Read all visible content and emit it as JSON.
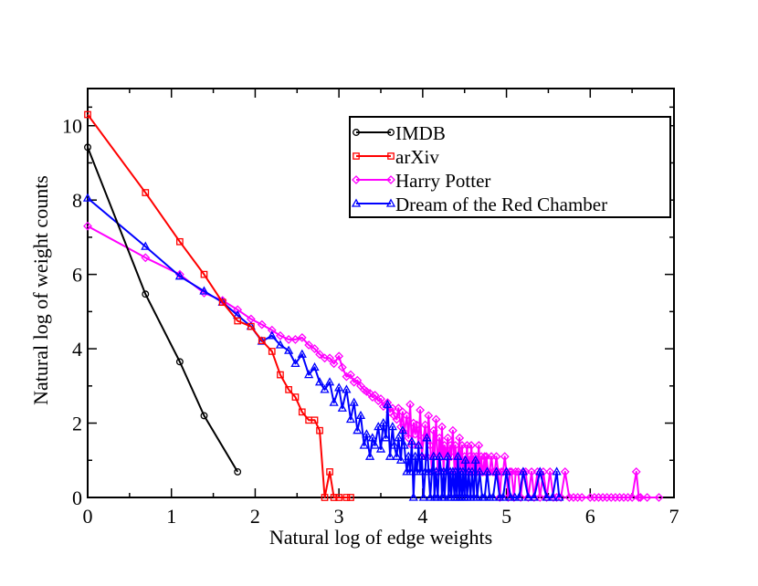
{
  "chart_data": {
    "type": "line",
    "title": "",
    "xlabel": "Natural log of edge weights",
    "ylabel": "Natural log of weight counts",
    "xlim": [
      0,
      7
    ],
    "ylim": [
      0,
      11
    ],
    "x_ticks": [
      0,
      1,
      2,
      3,
      4,
      5,
      6,
      7
    ],
    "y_ticks": [
      0,
      2,
      4,
      6,
      8,
      10
    ],
    "x_tick_labels": [
      "0",
      "1",
      "2",
      "3",
      "4",
      "5",
      "6",
      "7"
    ],
    "y_tick_labels": [
      "0",
      "2",
      "4",
      "6",
      "8",
      "10"
    ],
    "legend_position": "top-right",
    "series": [
      {
        "name": "IMDB",
        "color": "#000000",
        "marker": "circle",
        "points": [
          [
            0,
            9.42
          ],
          [
            0.69,
            5.47
          ],
          [
            1.1,
            3.65
          ],
          [
            1.39,
            2.2
          ],
          [
            1.79,
            0.69
          ]
        ]
      },
      {
        "name": "arXiv",
        "color": "#ff0000",
        "marker": "square",
        "points": [
          [
            0,
            10.3
          ],
          [
            0.69,
            8.2
          ],
          [
            1.1,
            6.88
          ],
          [
            1.39,
            6.0
          ],
          [
            1.61,
            5.25
          ],
          [
            1.79,
            4.75
          ],
          [
            1.95,
            4.6
          ],
          [
            2.08,
            4.22
          ],
          [
            2.2,
            3.93
          ],
          [
            2.3,
            3.3
          ],
          [
            2.4,
            2.9
          ],
          [
            2.48,
            2.7
          ],
          [
            2.56,
            2.3
          ],
          [
            2.64,
            2.08
          ],
          [
            2.71,
            2.08
          ],
          [
            2.77,
            1.8
          ],
          [
            2.83,
            0
          ],
          [
            2.89,
            0.69
          ],
          [
            2.94,
            0
          ],
          [
            3.0,
            0
          ],
          [
            3.09,
            0
          ],
          [
            3.14,
            0
          ]
        ]
      },
      {
        "name": "Harry Potter",
        "color": "#ff00ff",
        "marker": "diamond",
        "points": [
          [
            0,
            7.3
          ],
          [
            0.69,
            6.45
          ],
          [
            1.1,
            6.0
          ],
          [
            1.39,
            5.5
          ],
          [
            1.61,
            5.3
          ],
          [
            1.79,
            5.05
          ],
          [
            1.95,
            4.8
          ],
          [
            2.08,
            4.65
          ],
          [
            2.2,
            4.5
          ],
          [
            2.3,
            4.35
          ],
          [
            2.4,
            4.25
          ],
          [
            2.48,
            4.25
          ],
          [
            2.56,
            4.3
          ],
          [
            2.64,
            4.1
          ],
          [
            2.71,
            4.0
          ],
          [
            2.77,
            3.85
          ],
          [
            2.83,
            3.75
          ],
          [
            2.89,
            3.75
          ],
          [
            2.94,
            3.6
          ],
          [
            3.0,
            3.8
          ],
          [
            3.04,
            3.5
          ],
          [
            3.09,
            3.25
          ],
          [
            3.14,
            3.3
          ],
          [
            3.18,
            3.1
          ],
          [
            3.22,
            3.15
          ],
          [
            3.26,
            3.0
          ],
          [
            3.3,
            2.9
          ],
          [
            3.33,
            2.85
          ],
          [
            3.37,
            2.8
          ],
          [
            3.4,
            2.7
          ],
          [
            3.43,
            2.75
          ],
          [
            3.47,
            2.6
          ],
          [
            3.5,
            2.65
          ],
          [
            3.53,
            2.45
          ],
          [
            3.56,
            2.5
          ],
          [
            3.58,
            2.55
          ],
          [
            3.61,
            2.3
          ],
          [
            3.64,
            2.4
          ],
          [
            3.66,
            2.2
          ],
          [
            3.69,
            2.1
          ],
          [
            3.71,
            2.4
          ],
          [
            3.74,
            1.9
          ],
          [
            3.76,
            2.3
          ],
          [
            3.78,
            1.75
          ],
          [
            3.81,
            2.2
          ],
          [
            3.83,
            1.6
          ],
          [
            3.85,
            2.5
          ],
          [
            3.87,
            1.4
          ],
          [
            3.89,
            2.0
          ],
          [
            3.91,
            1.7
          ],
          [
            3.93,
            1.95
          ],
          [
            3.95,
            1.4
          ],
          [
            3.97,
            2.35
          ],
          [
            3.99,
            1.1
          ],
          [
            4.01,
            1.6
          ],
          [
            4.03,
            1.95
          ],
          [
            4.05,
            1.1
          ],
          [
            4.07,
            2.2
          ],
          [
            4.09,
            1.4
          ],
          [
            4.11,
            0.69
          ],
          [
            4.13,
            1.8
          ],
          [
            4.14,
            1.1
          ],
          [
            4.16,
            2.1
          ],
          [
            4.18,
            0.69
          ],
          [
            4.2,
            1.6
          ],
          [
            4.22,
            1.1
          ],
          [
            4.23,
            1.9
          ],
          [
            4.25,
            0.69
          ],
          [
            4.26,
            1.4
          ],
          [
            4.28,
            1.1
          ],
          [
            4.3,
            1.6
          ],
          [
            4.31,
            0.69
          ],
          [
            4.33,
            1.4
          ],
          [
            4.34,
            1.1
          ],
          [
            4.36,
            1.8
          ],
          [
            4.38,
            0.69
          ],
          [
            4.39,
            1.4
          ],
          [
            4.41,
            0.69
          ],
          [
            4.42,
            1.1
          ],
          [
            4.44,
            1.6
          ],
          [
            4.45,
            0.69
          ],
          [
            4.47,
            1.4
          ],
          [
            4.48,
            0.69
          ],
          [
            4.5,
            1.1
          ],
          [
            4.51,
            0.69
          ],
          [
            4.53,
            1.4
          ],
          [
            4.54,
            0.69
          ],
          [
            4.56,
            1.1
          ],
          [
            4.57,
            0.69
          ],
          [
            4.58,
            1.4
          ],
          [
            4.6,
            0.69
          ],
          [
            4.61,
            1.1
          ],
          [
            4.63,
            0.69
          ],
          [
            4.64,
            1.1
          ],
          [
            4.65,
            0.69
          ],
          [
            4.67,
            1.4
          ],
          [
            4.68,
            0.69
          ],
          [
            4.7,
            1.1
          ],
          [
            4.71,
            0.69
          ],
          [
            4.72,
            0.69
          ],
          [
            4.74,
            1.1
          ],
          [
            4.75,
            0.69
          ],
          [
            4.76,
            1.1
          ],
          [
            4.78,
            0.69
          ],
          [
            4.8,
            0.69
          ],
          [
            4.82,
            1.1
          ],
          [
            4.84,
            0.69
          ],
          [
            4.86,
            0.69
          ],
          [
            4.88,
            1.1
          ],
          [
            4.9,
            0.69
          ],
          [
            4.92,
            0
          ],
          [
            4.94,
            0.69
          ],
          [
            4.96,
            0.69
          ],
          [
            4.98,
            1.1
          ],
          [
            5.0,
            0.69
          ],
          [
            5.02,
            0
          ],
          [
            5.04,
            0.69
          ],
          [
            5.06,
            0.69
          ],
          [
            5.09,
            0
          ],
          [
            5.11,
            0.69
          ],
          [
            5.14,
            0.69
          ],
          [
            5.17,
            0
          ],
          [
            5.2,
            0.69
          ],
          [
            5.23,
            0.69
          ],
          [
            5.26,
            0
          ],
          [
            5.3,
            0.69
          ],
          [
            5.33,
            0
          ],
          [
            5.37,
            0.69
          ],
          [
            5.4,
            0
          ],
          [
            5.44,
            0.69
          ],
          [
            5.48,
            0
          ],
          [
            5.52,
            0.69
          ],
          [
            5.56,
            0
          ],
          [
            5.6,
            0
          ],
          [
            5.65,
            0
          ],
          [
            5.7,
            0.69
          ],
          [
            5.75,
            0
          ],
          [
            5.8,
            0
          ],
          [
            5.85,
            0
          ],
          [
            5.9,
            0
          ],
          [
            6.0,
            0
          ],
          [
            6.05,
            0
          ],
          [
            6.1,
            0
          ],
          [
            6.15,
            0
          ],
          [
            6.2,
            0
          ],
          [
            6.25,
            0
          ],
          [
            6.3,
            0
          ],
          [
            6.35,
            0
          ],
          [
            6.4,
            0
          ],
          [
            6.45,
            0
          ],
          [
            6.5,
            0
          ],
          [
            6.55,
            0.69
          ],
          [
            6.58,
            0
          ],
          [
            6.6,
            0
          ],
          [
            6.68,
            0
          ],
          [
            6.82,
            0
          ]
        ]
      },
      {
        "name": "Dream of the Red Chamber",
        "color": "#0000ff",
        "marker": "triangle",
        "points": [
          [
            0,
            8.05
          ],
          [
            0.69,
            6.75
          ],
          [
            1.1,
            5.95
          ],
          [
            1.39,
            5.55
          ],
          [
            1.61,
            5.25
          ],
          [
            1.79,
            4.9
          ],
          [
            1.95,
            4.6
          ],
          [
            2.08,
            4.2
          ],
          [
            2.2,
            4.35
          ],
          [
            2.3,
            4.1
          ],
          [
            2.4,
            3.95
          ],
          [
            2.48,
            3.6
          ],
          [
            2.56,
            3.85
          ],
          [
            2.64,
            3.3
          ],
          [
            2.71,
            3.5
          ],
          [
            2.77,
            3.1
          ],
          [
            2.83,
            2.9
          ],
          [
            2.89,
            3.1
          ],
          [
            2.94,
            2.55
          ],
          [
            3.0,
            2.95
          ],
          [
            3.04,
            2.4
          ],
          [
            3.09,
            2.9
          ],
          [
            3.14,
            2.1
          ],
          [
            3.18,
            2.55
          ],
          [
            3.22,
            1.8
          ],
          [
            3.26,
            2.2
          ],
          [
            3.3,
            1.4
          ],
          [
            3.33,
            1.7
          ],
          [
            3.37,
            1.1
          ],
          [
            3.4,
            1.6
          ],
          [
            3.43,
            1.4
          ],
          [
            3.47,
            1.9
          ],
          [
            3.5,
            1.3
          ],
          [
            3.53,
            2.0
          ],
          [
            3.56,
            1.6
          ],
          [
            3.58,
            2.5
          ],
          [
            3.61,
            1.1
          ],
          [
            3.64,
            1.9
          ],
          [
            3.66,
            1.4
          ],
          [
            3.69,
            1.1
          ],
          [
            3.71,
            1.6
          ],
          [
            3.74,
            1.0
          ],
          [
            3.76,
            1.8
          ],
          [
            3.78,
            1.4
          ],
          [
            3.81,
            0.69
          ],
          [
            3.83,
            1.1
          ],
          [
            3.85,
            0.69
          ],
          [
            3.87,
            1.5
          ],
          [
            3.89,
            0
          ],
          [
            3.91,
            1.1
          ],
          [
            3.93,
            0.69
          ],
          [
            3.95,
            1.4
          ],
          [
            3.97,
            0.69
          ],
          [
            3.99,
            1.1
          ],
          [
            4.01,
            0
          ],
          [
            4.03,
            0.69
          ],
          [
            4.05,
            1.6
          ],
          [
            4.07,
            0.69
          ],
          [
            4.09,
            0
          ],
          [
            4.11,
            0.69
          ],
          [
            4.13,
            1.1
          ],
          [
            4.14,
            0
          ],
          [
            4.16,
            0.69
          ],
          [
            4.18,
            0
          ],
          [
            4.2,
            1.1
          ],
          [
            4.22,
            0.69
          ],
          [
            4.23,
            0
          ],
          [
            4.25,
            0.69
          ],
          [
            4.26,
            0
          ],
          [
            4.28,
            0.69
          ],
          [
            4.3,
            1.1
          ],
          [
            4.31,
            0
          ],
          [
            4.33,
            0.69
          ],
          [
            4.34,
            0
          ],
          [
            4.36,
            0.69
          ],
          [
            4.38,
            0
          ],
          [
            4.39,
            0.69
          ],
          [
            4.41,
            0
          ],
          [
            4.42,
            1.1
          ],
          [
            4.44,
            0
          ],
          [
            4.45,
            0.69
          ],
          [
            4.47,
            0
          ],
          [
            4.48,
            0.69
          ],
          [
            4.5,
            0
          ],
          [
            4.51,
            1.0
          ],
          [
            4.53,
            0
          ],
          [
            4.55,
            0.69
          ],
          [
            4.57,
            0
          ],
          [
            4.59,
            0.69
          ],
          [
            4.61,
            0
          ],
          [
            4.63,
            1.0
          ],
          [
            4.65,
            0
          ],
          [
            4.68,
            0.69
          ],
          [
            4.71,
            0
          ],
          [
            4.74,
            0
          ],
          [
            4.77,
            0.69
          ],
          [
            4.8,
            0
          ],
          [
            4.84,
            0
          ],
          [
            4.88,
            0.69
          ],
          [
            4.92,
            0
          ],
          [
            4.96,
            0
          ],
          [
            5.0,
            0.69
          ],
          [
            5.05,
            0
          ],
          [
            5.1,
            0
          ],
          [
            5.15,
            0
          ],
          [
            5.2,
            0.69
          ],
          [
            5.26,
            0
          ],
          [
            5.33,
            0
          ],
          [
            5.4,
            0.69
          ],
          [
            5.48,
            0
          ],
          [
            5.55,
            0
          ],
          [
            5.6,
            0.69
          ],
          [
            5.63,
            0
          ]
        ]
      }
    ]
  }
}
